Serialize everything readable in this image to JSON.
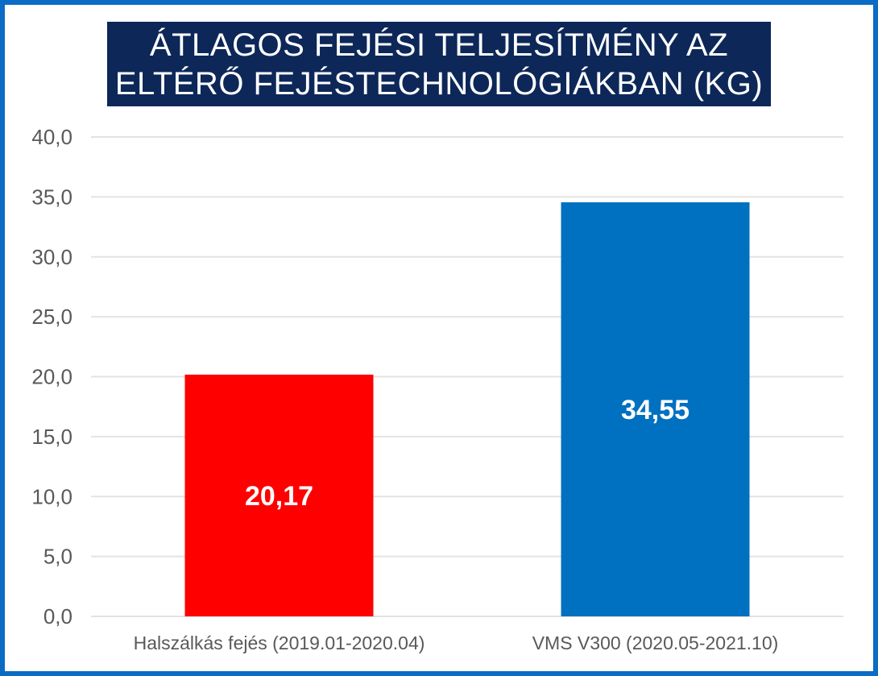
{
  "chart_data": {
    "type": "bar",
    "title": "ÁTLAGOS FEJÉSI TELJESÍTMÉNY AZ\nELTÉRŐ FEJÉSTECHNOLÓGIÁKBAN (KG)",
    "categories": [
      "Halszálkás fejés (2019.01-2020.04)",
      "VMS V300 (2020.05-2021.10)"
    ],
    "values": [
      20.17,
      34.55
    ],
    "value_labels": [
      "20,17",
      "34,55"
    ],
    "ylim": [
      0,
      40
    ],
    "yticks": [
      0,
      5,
      10,
      15,
      20,
      25,
      30,
      35,
      40
    ],
    "ytick_labels": [
      "0,0",
      "5,0",
      "10,0",
      "15,0",
      "20,0",
      "25,0",
      "30,0",
      "35,0",
      "40,0"
    ],
    "bar_colors": [
      "#ff0000",
      "#0070c0"
    ],
    "grid": true,
    "xlabel": "",
    "ylabel": ""
  },
  "colors": {
    "frame": "#0a6cc4",
    "title_background": "#0d2758",
    "gridline": "#e3e3e3",
    "axis_text": "#595959"
  }
}
